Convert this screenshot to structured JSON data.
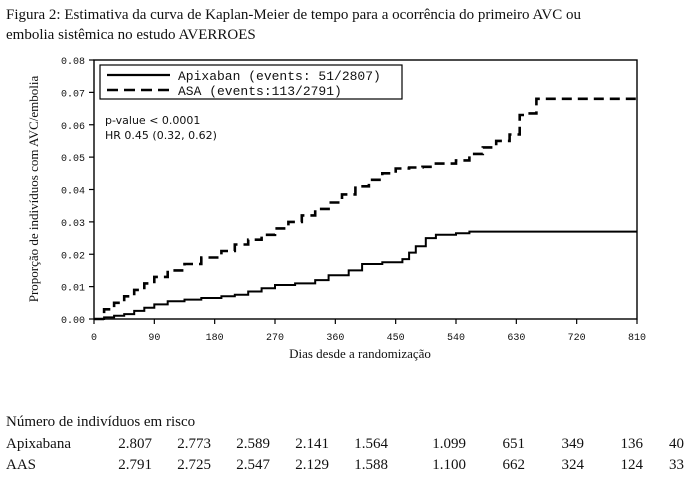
{
  "figure": {
    "caption_line1": "Figura 2: Estimativa da curva de Kaplan-Meier de tempo para a ocorrência do primeiro AVC ou",
    "caption_line2": "embolia sistêmica no estudo AVERROES"
  },
  "chart_data": {
    "type": "line",
    "step": true,
    "xlabel": "Dias desde a randomização",
    "ylabel": "Proporção de indivíduos com AVC/embolia",
    "xlim": [
      0,
      810
    ],
    "ylim": [
      0,
      0.08
    ],
    "x_ticks": [
      0,
      90,
      180,
      270,
      360,
      450,
      540,
      630,
      720,
      810
    ],
    "x_tick_labels": [
      "0",
      "90",
      "180",
      "270",
      "360",
      "450",
      "540",
      "630",
      "720",
      "810"
    ],
    "y_ticks": [
      0,
      0.01,
      0.02,
      0.03,
      0.04,
      0.05,
      0.06,
      0.07,
      0.08
    ],
    "y_tick_labels": [
      "0.00",
      "0.01",
      "0.02",
      "0.03",
      "0.04",
      "0.05",
      "0.06",
      "0.07",
      "0.08"
    ],
    "grid": false,
    "legend_position": "top-left",
    "series": [
      {
        "name": "Apixaban",
        "legend_label": "Apixaban (events: 51/2807)",
        "style": "solid",
        "x": [
          0,
          15,
          30,
          45,
          60,
          75,
          90,
          110,
          135,
          160,
          190,
          210,
          230,
          250,
          270,
          300,
          330,
          350,
          380,
          400,
          430,
          460,
          470,
          480,
          495,
          510,
          540,
          560,
          600,
          660,
          720,
          810
        ],
        "y": [
          0,
          0.0005,
          0.001,
          0.0015,
          0.0025,
          0.0035,
          0.0045,
          0.0055,
          0.006,
          0.0065,
          0.007,
          0.0075,
          0.0085,
          0.0095,
          0.0105,
          0.011,
          0.012,
          0.0135,
          0.015,
          0.017,
          0.0175,
          0.0185,
          0.0205,
          0.0225,
          0.025,
          0.026,
          0.0265,
          0.027,
          0.027,
          0.027,
          0.027,
          0.027
        ]
      },
      {
        "name": "ASA",
        "legend_label": "ASA (events:113/2791)",
        "style": "dashed",
        "x": [
          0,
          15,
          30,
          45,
          60,
          75,
          90,
          110,
          135,
          160,
          190,
          210,
          230,
          250,
          270,
          290,
          310,
          330,
          350,
          370,
          390,
          410,
          430,
          450,
          470,
          490,
          510,
          540,
          560,
          580,
          600,
          620,
          635,
          645,
          660,
          680,
          720,
          810
        ],
        "y": [
          0,
          0.003,
          0.005,
          0.007,
          0.009,
          0.011,
          0.013,
          0.015,
          0.017,
          0.019,
          0.021,
          0.023,
          0.0245,
          0.026,
          0.028,
          0.03,
          0.032,
          0.034,
          0.036,
          0.0385,
          0.041,
          0.043,
          0.045,
          0.0465,
          0.0468,
          0.047,
          0.048,
          0.049,
          0.051,
          0.053,
          0.055,
          0.057,
          0.063,
          0.0635,
          0.068,
          0.068,
          0.068,
          0.068
        ]
      }
    ],
    "annotations": [
      "p-value < 0.0001",
      "HR 0.45 (0.32, 0.62)"
    ]
  },
  "risk_table": {
    "title": "Número de indivíduos em risco",
    "rows": [
      {
        "name": "Apixabana",
        "values": [
          "2.807",
          "2.773",
          "2.589",
          "2.141",
          "1.564",
          "1.099",
          "651",
          "349",
          "136",
          "40"
        ]
      },
      {
        "name": "AAS",
        "values": [
          "2.791",
          "2.725",
          "2.547",
          "2.129",
          "1.588",
          "1.100",
          "662",
          "324",
          "124",
          "33"
        ]
      }
    ]
  }
}
